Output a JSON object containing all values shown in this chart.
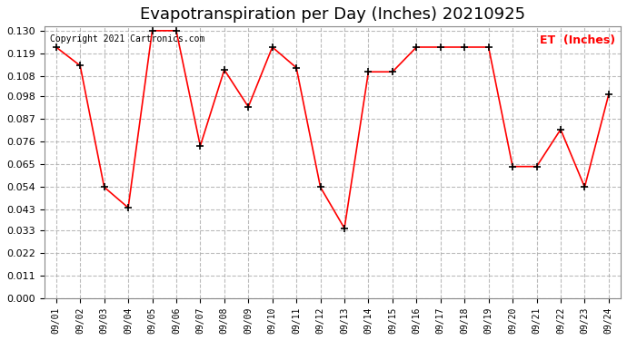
{
  "title": "Evapotranspiration per Day (Inches) 20210925",
  "copyright": "Copyright 2021 Cartronics.com",
  "legend_label": "ET  (Inches)",
  "x_labels": [
    "09/01",
    "09/02",
    "09/03",
    "09/04",
    "09/05",
    "09/06",
    "09/07",
    "09/08",
    "09/09",
    "09/10",
    "09/11",
    "09/12",
    "09/13",
    "09/14",
    "09/15",
    "09/16",
    "09/17",
    "09/18",
    "09/19",
    "09/20",
    "09/21",
    "09/22",
    "09/23",
    "09/24"
  ],
  "y_values": [
    0.122,
    0.113,
    0.054,
    0.044,
    0.13,
    0.13,
    0.074,
    0.111,
    0.093,
    0.122,
    0.112,
    0.054,
    0.034,
    0.11,
    0.11,
    0.122,
    0.122,
    0.122,
    0.122,
    0.064,
    0.064,
    0.082,
    0.054,
    0.099
  ],
  "y_ticks": [
    0.0,
    0.011,
    0.022,
    0.033,
    0.043,
    0.054,
    0.065,
    0.076,
    0.087,
    0.098,
    0.108,
    0.119,
    0.13
  ],
  "ylim": [
    0.0,
    0.13
  ],
  "line_color": "red",
  "marker_color": "black",
  "grid_color": "#aaaaaa",
  "bg_color": "white",
  "title_fontsize": 13,
  "copyright_fontsize": 7,
  "legend_color": "red",
  "tick_fontsize": 8,
  "xlabel_fontsize": 7
}
